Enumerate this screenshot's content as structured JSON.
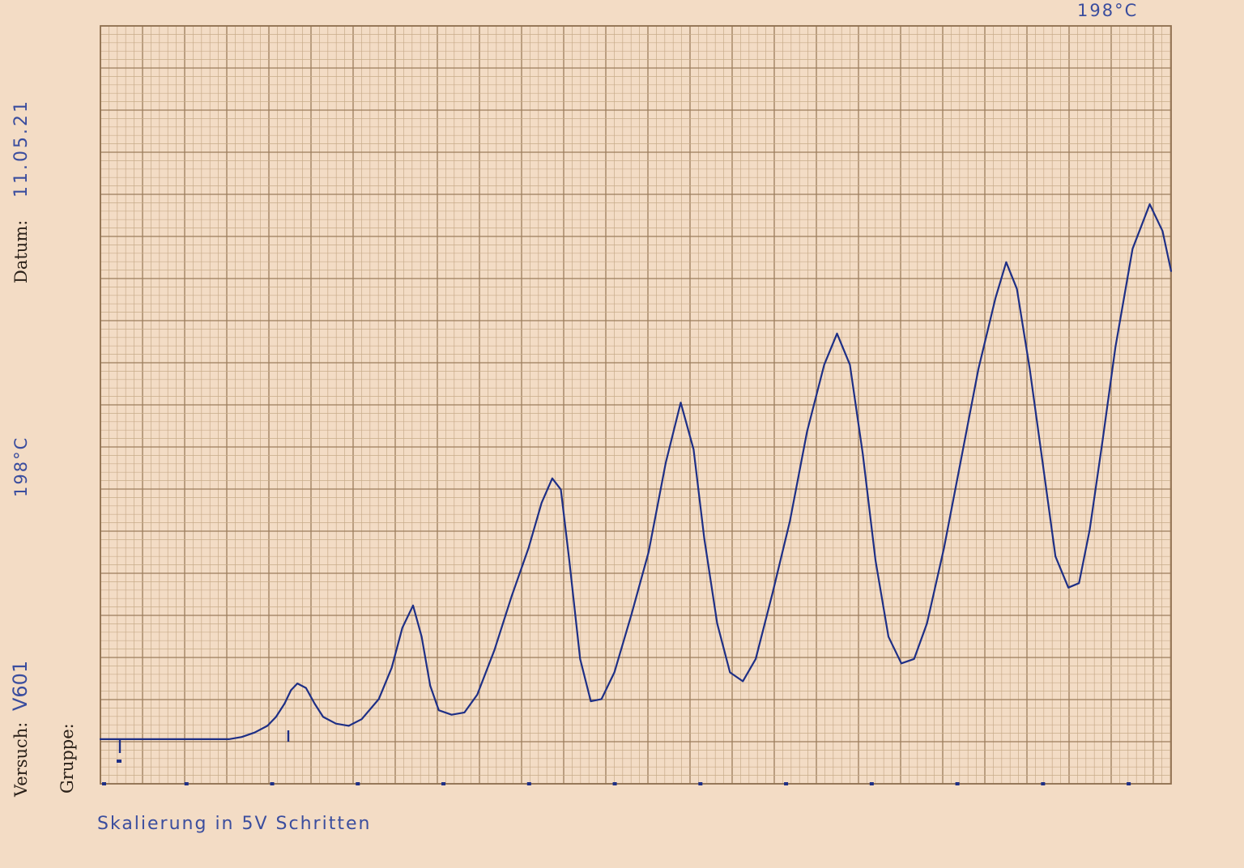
{
  "form": {
    "versuch_label": "Versuch:",
    "versuch_value": "V601",
    "gruppe_label": "Gruppe:",
    "datum_label": "Datum:",
    "datum_value": "11.05.21"
  },
  "annotations": {
    "temperature_left": "198°C",
    "temperature_top": "198°C",
    "scale_note": "Skalierung in 5V Schritten"
  },
  "chart_data": {
    "type": "line",
    "title": "",
    "xlabel": "",
    "ylabel": "",
    "xlim": [
      0,
      25
    ],
    "ylim": [
      0,
      17
    ],
    "grid": true,
    "x_markers": [
      0,
      2,
      4,
      6,
      8,
      10,
      12,
      14,
      16,
      18,
      20,
      22,
      24
    ],
    "ink_color": "#1e2f86",
    "series": [
      {
        "points": [
          [
            0,
            1.0
          ],
          [
            0.5,
            1.0
          ],
          [
            1,
            1.0
          ],
          [
            1.5,
            1.0
          ],
          [
            2,
            1.0
          ],
          [
            2.5,
            1.0
          ],
          [
            3,
            1.0
          ],
          [
            3.3,
            1.05
          ],
          [
            3.6,
            1.15
          ],
          [
            3.9,
            1.3
          ],
          [
            4.1,
            1.5
          ],
          [
            4.3,
            1.8
          ],
          [
            4.45,
            2.1
          ],
          [
            4.6,
            2.25
          ],
          [
            4.8,
            2.15
          ],
          [
            5.0,
            1.8
          ],
          [
            5.2,
            1.5
          ],
          [
            5.5,
            1.35
          ],
          [
            5.8,
            1.3
          ],
          [
            6.1,
            1.45
          ],
          [
            6.5,
            1.9
          ],
          [
            6.8,
            2.6
          ],
          [
            7.05,
            3.5
          ],
          [
            7.3,
            4.0
          ],
          [
            7.5,
            3.3
          ],
          [
            7.7,
            2.2
          ],
          [
            7.9,
            1.65
          ],
          [
            8.2,
            1.55
          ],
          [
            8.5,
            1.6
          ],
          [
            8.8,
            2.0
          ],
          [
            9.2,
            3.0
          ],
          [
            9.6,
            4.2
          ],
          [
            10.0,
            5.3
          ],
          [
            10.3,
            6.3
          ],
          [
            10.55,
            6.85
          ],
          [
            10.75,
            6.6
          ],
          [
            10.95,
            5.0
          ],
          [
            11.2,
            2.8
          ],
          [
            11.45,
            1.85
          ],
          [
            11.7,
            1.9
          ],
          [
            12.0,
            2.5
          ],
          [
            12.4,
            3.8
          ],
          [
            12.8,
            5.2
          ],
          [
            13.2,
            7.2
          ],
          [
            13.55,
            8.55
          ],
          [
            13.85,
            7.5
          ],
          [
            14.1,
            5.5
          ],
          [
            14.4,
            3.6
          ],
          [
            14.7,
            2.5
          ],
          [
            15.0,
            2.3
          ],
          [
            15.3,
            2.8
          ],
          [
            15.7,
            4.3
          ],
          [
            16.1,
            5.9
          ],
          [
            16.5,
            7.9
          ],
          [
            16.9,
            9.4
          ],
          [
            17.2,
            10.1
          ],
          [
            17.5,
            9.4
          ],
          [
            17.8,
            7.4
          ],
          [
            18.1,
            5.0
          ],
          [
            18.4,
            3.3
          ],
          [
            18.7,
            2.7
          ],
          [
            19.0,
            2.8
          ],
          [
            19.3,
            3.6
          ],
          [
            19.7,
            5.3
          ],
          [
            20.1,
            7.3
          ],
          [
            20.5,
            9.3
          ],
          [
            20.9,
            10.9
          ],
          [
            21.15,
            11.7
          ],
          [
            21.4,
            11.1
          ],
          [
            21.7,
            9.3
          ],
          [
            22.0,
            7.2
          ],
          [
            22.3,
            5.1
          ],
          [
            22.6,
            4.4
          ],
          [
            22.85,
            4.5
          ],
          [
            23.1,
            5.7
          ],
          [
            23.4,
            7.7
          ],
          [
            23.7,
            9.8
          ],
          [
            24.1,
            12.0
          ],
          [
            24.5,
            13.0
          ],
          [
            24.8,
            12.4
          ],
          [
            25.0,
            11.5
          ]
        ]
      }
    ]
  }
}
